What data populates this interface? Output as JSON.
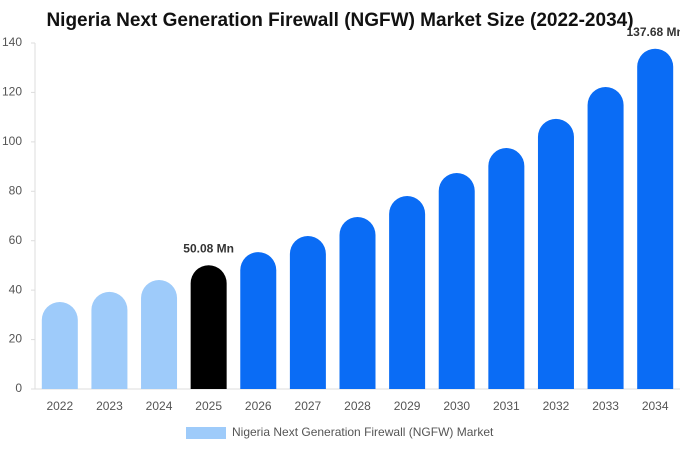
{
  "chart_data": {
    "type": "bar",
    "title": "Nigeria Next Generation Firewall (NGFW) Market Size (2022-2034)",
    "categories": [
      "2022",
      "2023",
      "2024",
      "2025",
      "2026",
      "2027",
      "2028",
      "2029",
      "2030",
      "2031",
      "2032",
      "2033",
      "2034"
    ],
    "series": [
      {
        "name": "Nigeria Next Generation Firewall (NGFW) Market",
        "color": "#9ecbfa",
        "colors": [
          "#9ecbfa",
          "#9ecbfa",
          "#9ecbfa",
          "#000000",
          "#0a6cf5",
          "#0a6cf5",
          "#0a6cf5",
          "#0a6cf5",
          "#0a6cf5",
          "#0a6cf5",
          "#0a6cf5",
          "#0a6cf5",
          "#0a6cf5"
        ],
        "values": [
          35.2,
          39.3,
          44.1,
          50.08,
          55.4,
          61.9,
          69.6,
          78.1,
          87.4,
          97.5,
          109.3,
          122.2,
          137.68
        ],
        "value_labels": [
          null,
          null,
          null,
          "50.08 Mn",
          null,
          null,
          null,
          null,
          null,
          null,
          null,
          null,
          "137.68 Mn"
        ]
      }
    ],
    "ylim": [
      0,
      140
    ],
    "yticks": [
      0,
      20,
      40,
      60,
      80,
      100,
      120,
      140
    ],
    "grid": false
  }
}
